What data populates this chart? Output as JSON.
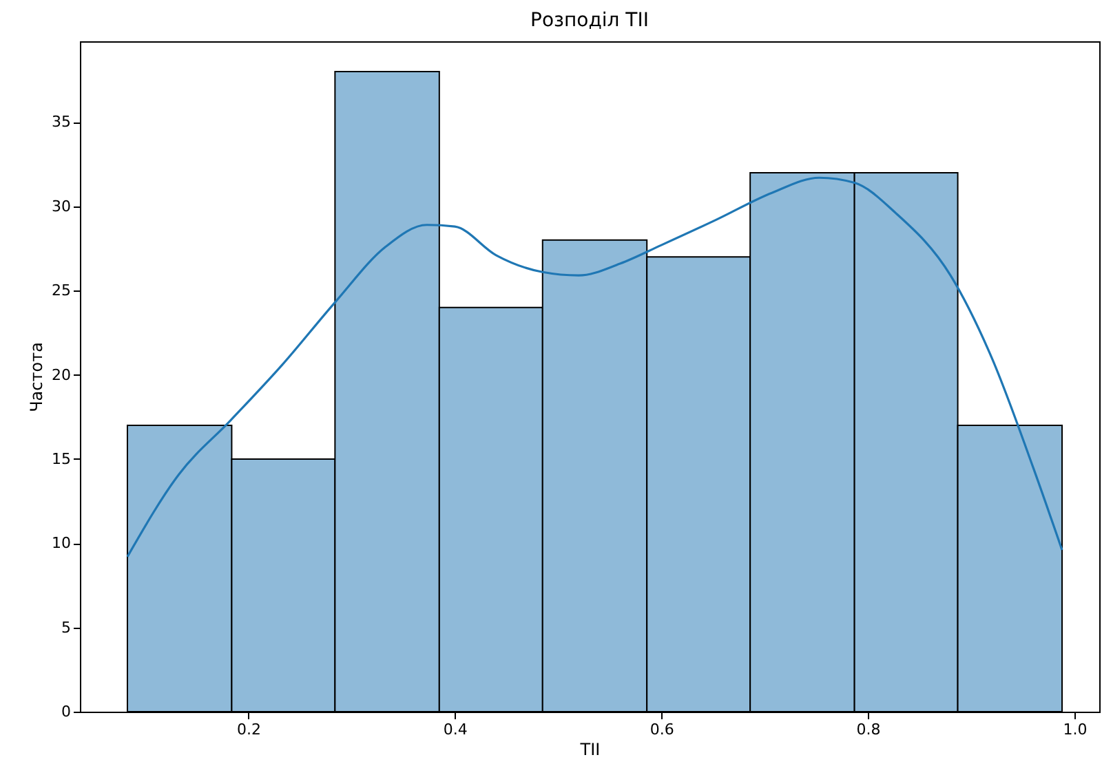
{
  "chart_data": {
    "type": "histogram",
    "title": "Розподіл TII",
    "xlabel": "TII",
    "ylabel": "Частота",
    "bins": [
      0.083,
      0.184,
      0.284,
      0.385,
      0.485,
      0.586,
      0.686,
      0.787,
      0.887,
      0.988
    ],
    "xlim": [
      0.037,
      1.024
    ],
    "ylim": [
      0,
      39.8
    ],
    "xticks": [
      0.2,
      0.4,
      0.6,
      0.8,
      {
        "value": 1,
        "label": "1.0"
      }
    ],
    "yticks": [
      0,
      5,
      10,
      15,
      20,
      25,
      30,
      35
    ],
    "grid": false,
    "series": [
      {
        "color": "#8fbad9",
        "values": [
          17,
          15,
          38,
          24,
          28,
          27,
          32,
          32,
          17
        ]
      },
      {
        "type": "line",
        "color": "#1f77b4",
        "x": [
          0.083,
          0.133,
          0.183,
          0.233,
          0.284,
          0.333,
          0.373,
          0.4,
          0.44,
          0.485,
          0.52,
          0.56,
          0.6,
          0.653,
          0.707,
          0.753,
          0.787,
          0.827,
          0.88,
          0.92,
          0.96,
          0.988
        ],
        "values": [
          9.2,
          14.1,
          17.3,
          20.6,
          24.3,
          27.6,
          28.9,
          28.8,
          27.1,
          26.1,
          25.9,
          26.6,
          27.7,
          29.2,
          30.8,
          31.7,
          31.4,
          29.6,
          25.9,
          21.0,
          14.5,
          9.6
        ]
      }
    ]
  }
}
